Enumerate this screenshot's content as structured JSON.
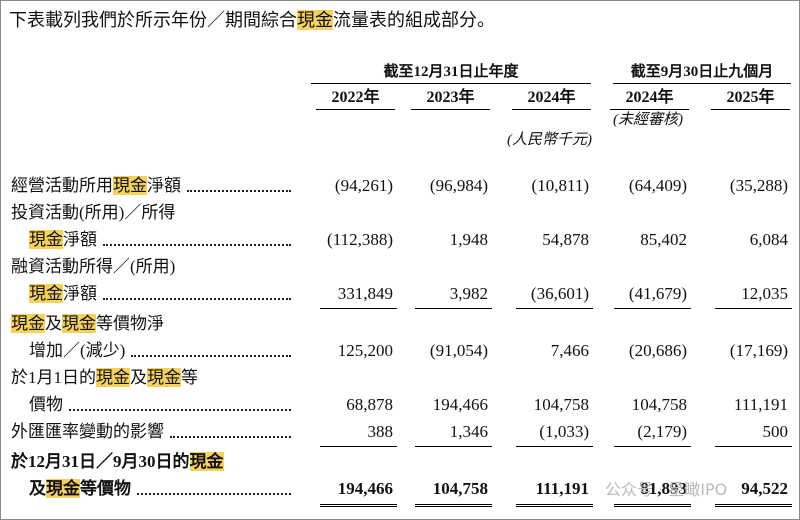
{
  "intro": [
    {
      "text": "下表載列我們於所示年份／期間綜合"
    },
    {
      "text": "現金",
      "highlight": true
    },
    {
      "text": "流量表的組成部分。"
    }
  ],
  "table": {
    "group_headers": [
      "截至12月31日止年度",
      "截至9月30日止九個月"
    ],
    "columns": [
      "2022年",
      "2023年",
      "2024年",
      "2024年",
      "2025年"
    ],
    "unaudited_note": "(未經審核)",
    "unit_note": "(人民幣千元)",
    "rows": [
      {
        "label": [
          [
            {
              "text": "經營活動所用"
            },
            {
              "text": "現金",
              "highlight": true
            },
            {
              "text": "淨額"
            }
          ]
        ],
        "values": [
          "(94,261)",
          "(96,984)",
          "(10,811)",
          "(64,409)",
          "(35,288)"
        ]
      },
      {
        "label": [
          [
            {
              "text": "投資活動(所用)／所得"
            }
          ],
          [
            {
              "text": "現金",
              "highlight": true
            },
            {
              "text": "淨額"
            }
          ]
        ],
        "values": [
          "(112,388)",
          "1,948",
          "54,878",
          "85,402",
          "6,084"
        ]
      },
      {
        "label": [
          [
            {
              "text": "融資活動所得／(所用)"
            }
          ],
          [
            {
              "text": "現金",
              "highlight": true
            },
            {
              "text": "淨額"
            }
          ]
        ],
        "values": [
          "331,849",
          "3,982",
          "(36,601)",
          "(41,679)",
          "12,035"
        ],
        "rule": "single"
      },
      {
        "label": [
          [
            {
              "text": "現金",
              "highlight": true
            },
            {
              "text": "及"
            },
            {
              "text": "現金",
              "highlight": true
            },
            {
              "text": "等價物淨"
            }
          ],
          [
            {
              "text": "增加／(減少)"
            }
          ]
        ],
        "values": [
          "125,200",
          "(91,054)",
          "7,466",
          "(20,686)",
          "(17,169)"
        ]
      },
      {
        "label": [
          [
            {
              "text": "於1月1日的"
            },
            {
              "text": "現金",
              "highlight": true
            },
            {
              "text": "及"
            },
            {
              "text": "現金",
              "highlight": true
            },
            {
              "text": "等"
            }
          ],
          [
            {
              "text": "價物"
            }
          ]
        ],
        "values": [
          "68,878",
          "194,466",
          "104,758",
          "104,758",
          "111,191"
        ]
      },
      {
        "label": [
          [
            {
              "text": "外匯匯率變動的影響"
            }
          ]
        ],
        "values": [
          "388",
          "1,346",
          "(1,033)",
          "(2,179)",
          "500"
        ],
        "rule": "single"
      },
      {
        "label": [
          [
            {
              "text": "於12月31日／9月30日的"
            },
            {
              "text": "現金",
              "highlight": true
            }
          ],
          [
            {
              "text": "及"
            },
            {
              "text": "現金",
              "highlight": true
            },
            {
              "text": "等價物"
            }
          ]
        ],
        "values": [
          "194,466",
          "104,758",
          "111,191",
          "81,893",
          "94,522"
        ],
        "rule": "double",
        "bold": true
      }
    ]
  },
  "watermark": "公众号 · 星瞰IPO"
}
